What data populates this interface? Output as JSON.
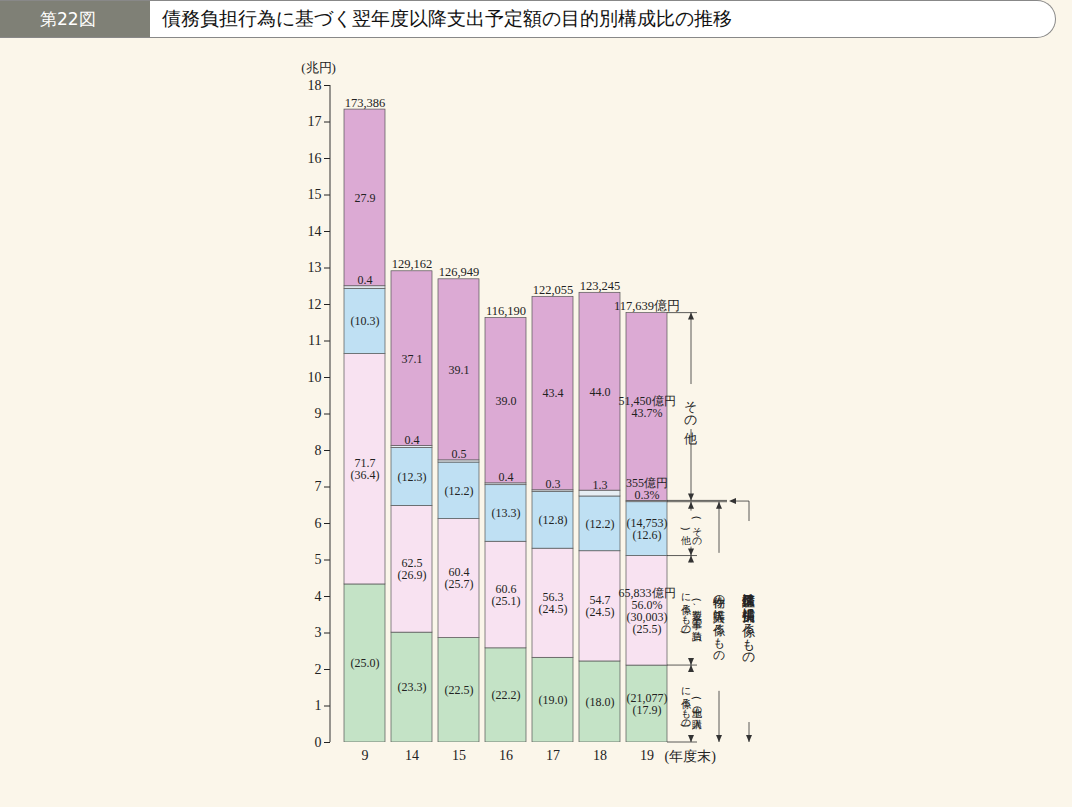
{
  "chart_data": {
    "type": "bar",
    "stacked": true,
    "figure_label": "第22図",
    "title": "債務負担行為に基づく翌年度以降支出予定額の目的別構成比の推移",
    "y_label": "(兆円)",
    "x_label": "(年度末)",
    "categories": [
      "9",
      "14",
      "15",
      "16",
      "17",
      "18",
      "19"
    ],
    "ylim": [
      0,
      18
    ],
    "yticks": [
      0,
      1,
      2,
      3,
      4,
      5,
      6,
      7,
      8,
      9,
      10,
      11,
      12,
      13,
      14,
      15,
      16,
      17,
      18
    ],
    "totals": [
      17.3386,
      12.9162,
      12.6949,
      11.619,
      12.2055,
      12.3245,
      11.7639
    ],
    "total_labels": [
      "173,386",
      "129,162",
      "126,949",
      "116,190",
      "122,055",
      "123,245",
      "117,639億円"
    ],
    "series": [
      {
        "name": "(土地の購入に係るもの)",
        "color": "#c4e3c6",
        "values": [
          4.33,
          3.01,
          2.86,
          2.58,
          2.32,
          2.22,
          2.1077
        ],
        "labels": [
          [
            "(25.0)"
          ],
          [
            "(23.3)"
          ],
          [
            "(22.5)"
          ],
          [
            "(22.2)"
          ],
          [
            "(19.0)"
          ],
          [
            "(18.0)"
          ],
          [
            "(21,077)",
            "(17.9)"
          ]
        ]
      },
      {
        "name": "(製造、工事の請負に係るもの)",
        "color": "#f8e2f1",
        "values": [
          6.31,
          3.47,
          3.26,
          2.92,
          2.99,
          3.02,
          3.0003
        ],
        "labels": [
          [
            "(36.4)"
          ],
          [
            "(26.9)"
          ],
          [
            "(25.7)"
          ],
          [
            "(25.1)"
          ],
          [
            "(24.5)"
          ],
          [
            "(24.5)"
          ],
          [
            "(30,003)",
            "(25.5)"
          ]
        ]
      },
      {
        "name": "(その他)",
        "color": "#bfe0f3",
        "values": [
          1.79,
          1.59,
          1.55,
          1.55,
          1.56,
          1.5,
          1.4753
        ],
        "labels": [
          [
            "(10.3)"
          ],
          [
            "(12.3)"
          ],
          [
            "(12.2)"
          ],
          [
            "(13.3)"
          ],
          [
            "(12.8)"
          ],
          [
            "(12.2)"
          ],
          [
            "(14,753)",
            "(12.6)"
          ]
        ]
      },
      {
        "name": "債務保証又は損失補償に係るもの",
        "color": "#e6edf3",
        "values": [
          0.07,
          0.05,
          0.06,
          0.05,
          0.04,
          0.16,
          0.0355
        ],
        "labels": [
          [
            "0.4"
          ],
          [
            "0.4"
          ],
          [
            "0.5"
          ],
          [
            "0.4"
          ],
          [
            "0.3"
          ],
          [
            "1.3"
          ],
          [
            "355億円",
            "0.3%"
          ]
        ]
      },
      {
        "name": "その他",
        "color": "#dcaad4",
        "values": [
          4.84,
          4.79,
          4.96,
          4.53,
          5.3,
          5.42,
          5.145
        ],
        "labels": [
          [
            "27.9"
          ],
          [
            "37.1"
          ],
          [
            "39.1"
          ],
          [
            "39.0"
          ],
          [
            "43.4"
          ],
          [
            "44.0"
          ],
          [
            "51,450億円",
            "43.7%"
          ]
        ]
      }
    ],
    "groups": [
      {
        "name": "物件の購入等に係るもの",
        "series": [
          "(土地の購入に係るもの)",
          "(製造、工事の請負に係るもの)",
          "(その他)"
        ],
        "labels": [
          [
            "71.7"
          ],
          [
            "62.5"
          ],
          [
            "60.4"
          ],
          [
            "60.6"
          ],
          [
            "56.3"
          ],
          [
            "54.7"
          ],
          [
            "65,833億円",
            "56.0%"
          ]
        ]
      }
    ]
  }
}
